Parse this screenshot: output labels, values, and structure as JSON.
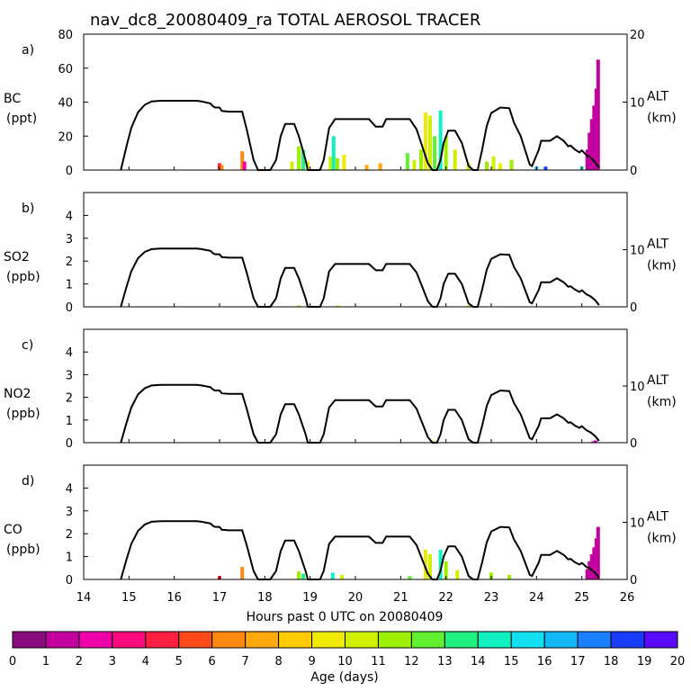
{
  "chart_data": {
    "type": "bar",
    "title": "nav_dc8_20080409_ra TOTAL AEROSOL TRACER",
    "xlabel": "Hours past 0 UTC on 20080409",
    "xlim": [
      14,
      26
    ],
    "x_ticks": [
      14,
      15,
      16,
      17,
      18,
      19,
      20,
      21,
      22,
      23,
      24,
      25,
      26
    ],
    "right_axis": {
      "label": "ALT",
      "unit": "(km)",
      "ylim": [
        0,
        20
      ],
      "ticks": [
        0,
        10,
        20
      ]
    },
    "altitude_km": [
      [
        14.82,
        0
      ],
      [
        14.95,
        3.6
      ],
      [
        15.05,
        6.2
      ],
      [
        15.2,
        8.5
      ],
      [
        15.35,
        9.6
      ],
      [
        15.5,
        10.1
      ],
      [
        15.7,
        10.2
      ],
      [
        16.2,
        10.2
      ],
      [
        16.5,
        10.2
      ],
      [
        16.6,
        10.1
      ],
      [
        16.8,
        9.8
      ],
      [
        16.85,
        9.4
      ],
      [
        16.9,
        9.2
      ],
      [
        17,
        9.2
      ],
      [
        17.05,
        8.7
      ],
      [
        17.2,
        8.6
      ],
      [
        17.5,
        8.6
      ],
      [
        17.6,
        6
      ],
      [
        17.75,
        1.5
      ],
      [
        17.85,
        0
      ],
      [
        18.12,
        0
      ],
      [
        18.25,
        1.5
      ],
      [
        18.35,
        5
      ],
      [
        18.45,
        6.8
      ],
      [
        18.65,
        6.8
      ],
      [
        18.75,
        5
      ],
      [
        18.9,
        1.5
      ],
      [
        18.95,
        0
      ],
      [
        19.22,
        0
      ],
      [
        19.3,
        1.5
      ],
      [
        19.42,
        6.2
      ],
      [
        19.55,
        7.5
      ],
      [
        20.3,
        7.5
      ],
      [
        20.45,
        6.4
      ],
      [
        20.6,
        6.4
      ],
      [
        20.68,
        7.5
      ],
      [
        21.2,
        7.5
      ],
      [
        21.35,
        6
      ],
      [
        21.5,
        3
      ],
      [
        21.6,
        1
      ],
      [
        21.7,
        0
      ],
      [
        21.8,
        0
      ],
      [
        21.88,
        1.5
      ],
      [
        21.95,
        4
      ],
      [
        22.05,
        5.8
      ],
      [
        22.2,
        5.8
      ],
      [
        22.35,
        4
      ],
      [
        22.5,
        0.6
      ],
      [
        22.6,
        0
      ],
      [
        22.7,
        0
      ],
      [
        22.8,
        3
      ],
      [
        22.9,
        6.5
      ],
      [
        23,
        8.4
      ],
      [
        23.2,
        9.2
      ],
      [
        23.4,
        9.1
      ],
      [
        23.5,
        7
      ],
      [
        23.65,
        5
      ],
      [
        23.85,
        0.8
      ],
      [
        23.9,
        0.6
      ],
      [
        24.05,
        3
      ],
      [
        24.1,
        4.3
      ],
      [
        24.3,
        4.3
      ],
      [
        24.45,
        5
      ],
      [
        24.6,
        4.3
      ],
      [
        24.7,
        3.5
      ],
      [
        24.75,
        3.6
      ],
      [
        24.85,
        3
      ],
      [
        24.95,
        2.6
      ],
      [
        25,
        2.9
      ],
      [
        25.1,
        2.2
      ],
      [
        25.2,
        1.8
      ],
      [
        25.3,
        1.1
      ],
      [
        25.38,
        0.3
      ]
    ],
    "age_colorbar": {
      "label": "Age (days)",
      "ticks": [
        0,
        1,
        2,
        3,
        4,
        5,
        6,
        7,
        8,
        9,
        10,
        11,
        12,
        13,
        14,
        15,
        16,
        17,
        18,
        19,
        20
      ],
      "colors": [
        "#8a0a80",
        "#c2009e",
        "#f000a8",
        "#ff0b80",
        "#ff1f40",
        "#ff4a1a",
        "#ff8810",
        "#ffaa0a",
        "#ffcc00",
        "#f0ea00",
        "#d0f000",
        "#9cf000",
        "#60f030",
        "#20f080",
        "#10f0c0",
        "#10e0f0",
        "#10b8f8",
        "#1a80ff",
        "#1a3cff",
        "#5a0aff"
      ]
    },
    "panels": [
      {
        "letter": "a)",
        "species": "BC",
        "unit": "(ppt)",
        "ylim": [
          0,
          80
        ],
        "y_ticks": [
          0,
          20,
          40,
          60,
          80
        ],
        "bars": [
          {
            "x": 17.0,
            "v": 4,
            "c": 4
          },
          {
            "x": 17.05,
            "v": 3,
            "c": 6
          },
          {
            "x": 17.5,
            "v": 11,
            "c": 6
          },
          {
            "x": 17.55,
            "v": 5,
            "c": 2
          },
          {
            "x": 18.6,
            "v": 5,
            "c": 10
          },
          {
            "x": 18.75,
            "v": 14,
            "c": 11
          },
          {
            "x": 18.85,
            "v": 12,
            "c": 13
          },
          {
            "x": 18.95,
            "v": 5,
            "c": 9
          },
          {
            "x": 19.45,
            "v": 8,
            "c": 10
          },
          {
            "x": 19.52,
            "v": 20,
            "c": 14
          },
          {
            "x": 19.6,
            "v": 7,
            "c": 11
          },
          {
            "x": 19.75,
            "v": 9,
            "c": 9
          },
          {
            "x": 20.25,
            "v": 3,
            "c": 7
          },
          {
            "x": 20.55,
            "v": 4,
            "c": 7
          },
          {
            "x": 21.15,
            "v": 10,
            "c": 12
          },
          {
            "x": 21.3,
            "v": 6,
            "c": 10
          },
          {
            "x": 21.45,
            "v": 12,
            "c": 11
          },
          {
            "x": 21.55,
            "v": 34,
            "c": 9
          },
          {
            "x": 21.65,
            "v": 32,
            "c": 10
          },
          {
            "x": 21.75,
            "v": 20,
            "c": 12
          },
          {
            "x": 21.88,
            "v": 35,
            "c": 14
          },
          {
            "x": 22.0,
            "v": 20,
            "c": 11
          },
          {
            "x": 22.2,
            "v": 12,
            "c": 10
          },
          {
            "x": 22.5,
            "v": 4,
            "c": 10
          },
          {
            "x": 22.9,
            "v": 5,
            "c": 11
          },
          {
            "x": 23.05,
            "v": 8,
            "c": 10
          },
          {
            "x": 23.2,
            "v": 4,
            "c": 9
          },
          {
            "x": 23.45,
            "v": 6,
            "c": 11
          },
          {
            "x": 24.0,
            "v": 2,
            "c": 16
          },
          {
            "x": 24.2,
            "v": 2,
            "c": 18
          },
          {
            "x": 25.0,
            "v": 2,
            "c": 14
          },
          {
            "x": 25.12,
            "v": 12,
            "c": 1
          },
          {
            "x": 25.17,
            "v": 22,
            "c": 1
          },
          {
            "x": 25.22,
            "v": 30,
            "c": 1
          },
          {
            "x": 25.27,
            "v": 38,
            "c": 1
          },
          {
            "x": 25.32,
            "v": 48,
            "c": 1
          },
          {
            "x": 25.36,
            "v": 65,
            "c": 1
          }
        ]
      },
      {
        "letter": "b)",
        "species": "SO2",
        "unit": "(ppb)",
        "ylim": [
          0,
          5
        ],
        "y_ticks": [
          0,
          1,
          2,
          3,
          4
        ],
        "bars": [
          {
            "x": 18.75,
            "v": 0.06,
            "c": 11
          },
          {
            "x": 19.6,
            "v": 0.05,
            "c": 11
          },
          {
            "x": 21.7,
            "v": 0.05,
            "c": 9
          },
          {
            "x": 22.5,
            "v": 0.05,
            "c": 10
          }
        ]
      },
      {
        "letter": "c)",
        "species": "NO2",
        "unit": "(ppb)",
        "ylim": [
          0,
          5
        ],
        "y_ticks": [
          0,
          1,
          2,
          3,
          4
        ],
        "bars": [
          {
            "x": 21.7,
            "v": 0.1,
            "c": 9
          },
          {
            "x": 22.6,
            "v": 0.05,
            "c": 10
          },
          {
            "x": 25.25,
            "v": 0.05,
            "c": 1
          },
          {
            "x": 25.3,
            "v": 0.1,
            "c": 1
          }
        ]
      },
      {
        "letter": "d)",
        "species": "CO",
        "unit": "(ppb)",
        "ylim": [
          0,
          5
        ],
        "y_ticks": [
          0,
          1,
          2,
          3,
          4
        ],
        "bars": [
          {
            "x": 17.0,
            "v": 0.15,
            "c": 4
          },
          {
            "x": 17.5,
            "v": 0.55,
            "c": 6
          },
          {
            "x": 18.75,
            "v": 0.35,
            "c": 11
          },
          {
            "x": 18.85,
            "v": 0.25,
            "c": 13
          },
          {
            "x": 19.5,
            "v": 0.3,
            "c": 14
          },
          {
            "x": 19.7,
            "v": 0.2,
            "c": 10
          },
          {
            "x": 21.2,
            "v": 0.15,
            "c": 12
          },
          {
            "x": 21.55,
            "v": 1.3,
            "c": 9
          },
          {
            "x": 21.65,
            "v": 1.1,
            "c": 10
          },
          {
            "x": 21.88,
            "v": 1.3,
            "c": 14
          },
          {
            "x": 22.0,
            "v": 0.8,
            "c": 11
          },
          {
            "x": 22.25,
            "v": 0.4,
            "c": 10
          },
          {
            "x": 23.0,
            "v": 0.3,
            "c": 11
          },
          {
            "x": 23.4,
            "v": 0.2,
            "c": 11
          },
          {
            "x": 25.12,
            "v": 0.45,
            "c": 1
          },
          {
            "x": 25.17,
            "v": 0.8,
            "c": 1
          },
          {
            "x": 25.22,
            "v": 1.1,
            "c": 1
          },
          {
            "x": 25.27,
            "v": 1.4,
            "c": 1
          },
          {
            "x": 25.32,
            "v": 1.8,
            "c": 1
          },
          {
            "x": 25.36,
            "v": 2.3,
            "c": 1
          }
        ]
      }
    ]
  }
}
